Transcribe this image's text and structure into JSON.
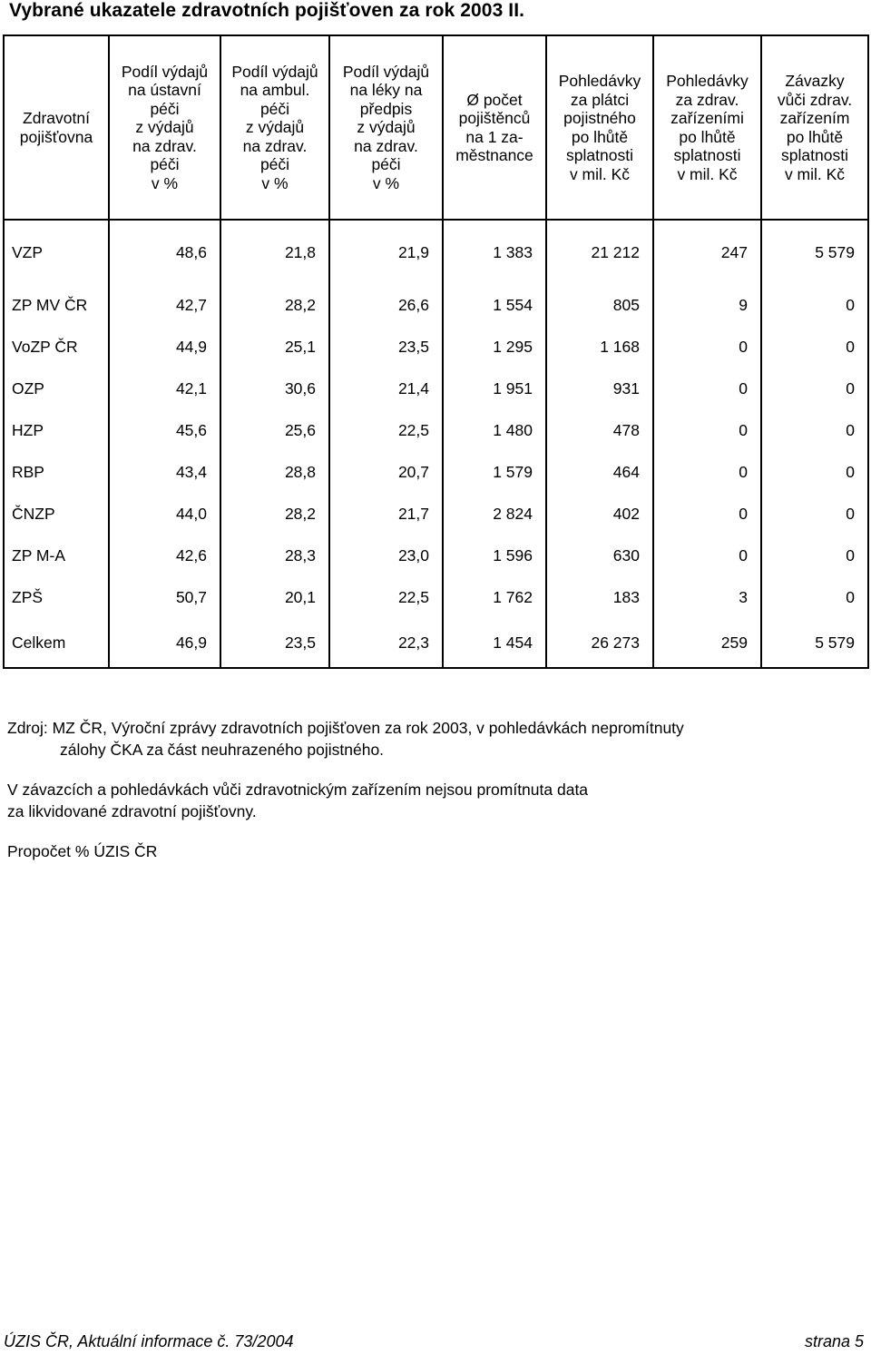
{
  "title": "Vybrané ukazatele zdravotních pojišťoven za rok 2003 II.",
  "table": {
    "headers": [
      "Zdravotní\npojišťovna",
      "Podíl výdajů\nna ústavní\npéči\nz výdajů\nna zdrav.\npéči\nv %",
      "Podíl výdajů\nna ambul.\npéči\nz výdajů\nna zdrav.\npéči\nv %",
      "Podíl výdajů\nna léky na\npředpis\nz výdajů\nna zdrav.\npéči\nv %",
      "Ø počet\npojištěnců\nna 1 za-\nměstnance",
      "Pohledávky\nza plátci\npojistného\npo lhůtě\nsplatnosti\nv mil. Kč",
      "Pohledávky\nza zdrav.\nzařízeními\npo lhůtě\nsplatnosti\nv mil. Kč",
      "Závazky\nvůči zdrav.\nzařízením\npo lhůtě\nsplatnosti\nv mil. Kč"
    ],
    "rows": [
      [
        "VZP",
        "48,6",
        "21,8",
        "21,9",
        "1 383",
        "21 212",
        "247",
        "5 579"
      ],
      [
        "ZP MV ČR",
        "42,7",
        "28,2",
        "26,6",
        "1 554",
        "805",
        "9",
        "0"
      ],
      [
        "VoZP ČR",
        "44,9",
        "25,1",
        "23,5",
        "1 295",
        "1 168",
        "0",
        "0"
      ],
      [
        "OZP",
        "42,1",
        "30,6",
        "21,4",
        "1 951",
        "931",
        "0",
        "0"
      ],
      [
        "HZP",
        "45,6",
        "25,6",
        "22,5",
        "1 480",
        "478",
        "0",
        "0"
      ],
      [
        "RBP",
        "43,4",
        "28,8",
        "20,7",
        "1 579",
        "464",
        "0",
        "0"
      ],
      [
        "ČNZP",
        "44,0",
        "28,2",
        "21,7",
        "2 824",
        "402",
        "0",
        "0"
      ],
      [
        "ZP M-A",
        "42,6",
        "28,3",
        "23,0",
        "1 596",
        "630",
        "0",
        "0"
      ],
      [
        "ZPŠ",
        "50,7",
        "20,1",
        "22,5",
        "1 762",
        "183",
        "3",
        "0"
      ],
      [
        "Celkem",
        "46,9",
        "23,5",
        "22,3",
        "1 454",
        "26 273",
        "259",
        "5 579"
      ]
    ]
  },
  "notes": {
    "source_line1": "Zdroj: MZ ČR, Výroční zprávy zdravotních pojišťoven za rok 2003, v pohledávkách nepromítnuty",
    "source_line2": "zálohy ČKA za část neuhrazeného pojistného.",
    "note_line1": "V závazcích a pohledávkách vůči zdravotnickým zařízením nejsou promítnuta data",
    "note_line2": "za likvidované zdravotní pojišťovny.",
    "recalc": "Propočet % ÚZIS ČR"
  },
  "footer": {
    "left": "ÚZIS ČR, Aktuální informace č. 73/2004",
    "right": "strana 5"
  }
}
